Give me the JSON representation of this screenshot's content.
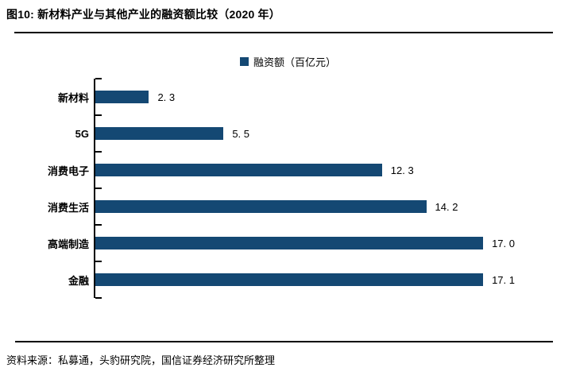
{
  "figure": {
    "title": "图10: 新材料产业与其他产业的融资额比较（2020 年）",
    "source": "资料来源：私募通，头豹研究院，国信证券经济研究所整理"
  },
  "legend": {
    "marker_color": "#144873",
    "label": "融资额（百亿元）"
  },
  "chart_data": {
    "type": "bar",
    "orientation": "horizontal",
    "title": "图10: 新材料产业与其他产业的融资额比较（2020 年）",
    "categories": [
      "新材料",
      "5G",
      "消费电子",
      "消费生活",
      "高端制造",
      "金融"
    ],
    "values": [
      2.3,
      5.5,
      12.3,
      14.2,
      17.0,
      17.1
    ],
    "value_labels": [
      "2. 3",
      "5. 5",
      "12. 3",
      "14. 2",
      "17. 0",
      "17. 1"
    ],
    "unit": "百亿元",
    "series_name": "融资额（百亿元）",
    "xlim": [
      0,
      18
    ],
    "grid": false,
    "axis_color": "#000000",
    "bar_color": "#144873",
    "legend_position": "top-center"
  }
}
